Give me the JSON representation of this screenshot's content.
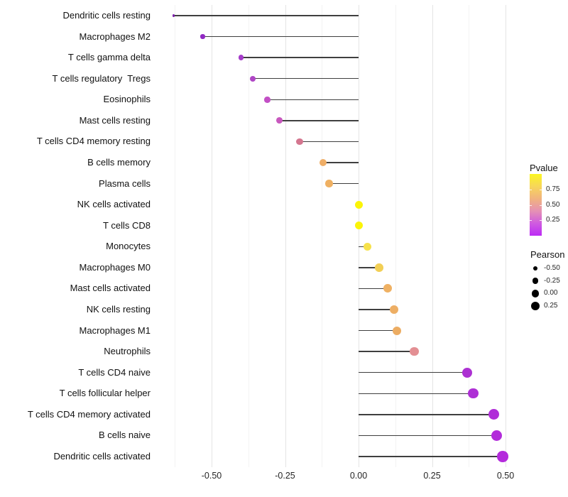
{
  "chart_data": {
    "type": "lollipop",
    "title": "",
    "xlabel": "",
    "ylabel": "",
    "x_ticks": [
      "-0.50",
      "-0.25",
      "0.00",
      "0.25",
      "0.50"
    ],
    "x_tick_values": [
      -0.5,
      -0.25,
      0.0,
      0.25,
      0.5
    ],
    "xlim": [
      -0.688,
      0.543
    ],
    "grid": "vertical-major-and-minor",
    "rows": [
      {
        "label": "Dendritic cells resting",
        "pearson": -0.63,
        "color": "#7e22ac",
        "diameter": 3.2
      },
      {
        "label": "Macrophages M2",
        "pearson": -0.53,
        "color": "#9129c3",
        "diameter": 6.2
      },
      {
        "label": "T cells gamma delta",
        "pearson": -0.4,
        "color": "#a53bc9",
        "diameter": 7.6
      },
      {
        "label": "T cells regulatory  Tregs",
        "pearson": -0.36,
        "color": "#af46c5",
        "diameter": 8.0
      },
      {
        "label": "Eosinophils",
        "pearson": -0.31,
        "color": "#c24fc5",
        "diameter": 8.5
      },
      {
        "label": "Mast cells resting",
        "pearson": -0.27,
        "color": "#c858be",
        "diameter": 8.9
      },
      {
        "label": "T cells CD4 memory resting",
        "pearson": -0.2,
        "color": "#d4768f",
        "diameter": 9.5
      },
      {
        "label": "B cells memory",
        "pearson": -0.12,
        "color": "#efae67",
        "diameter": 10.1
      },
      {
        "label": "Plasma cells",
        "pearson": -0.1,
        "color": "#efb062",
        "diameter": 10.3
      },
      {
        "label": "NK cells activated",
        "pearson": 0.0,
        "color": "#fbf408",
        "diameter": 11.0
      },
      {
        "label": "T cells CD8",
        "pearson": 0.0,
        "color": "#fbf408",
        "diameter": 11.0
      },
      {
        "label": "Monocytes",
        "pearson": 0.03,
        "color": "#f6e14b",
        "diameter": 11.3
      },
      {
        "label": "Macrophages M0",
        "pearson": 0.07,
        "color": "#f2cf55",
        "diameter": 11.6
      },
      {
        "label": "Mast cells activated",
        "pearson": 0.1,
        "color": "#efb163",
        "diameter": 11.9
      },
      {
        "label": "NK cells resting",
        "pearson": 0.12,
        "color": "#edae64",
        "diameter": 12.0
      },
      {
        "label": "Macrophages M1",
        "pearson": 0.13,
        "color": "#ecac62",
        "diameter": 12.1
      },
      {
        "label": "Neutrophils",
        "pearson": 0.19,
        "color": "#e38f93",
        "diameter": 12.6
      },
      {
        "label": "T cells CD4 naive",
        "pearson": 0.37,
        "color": "#ac31d2",
        "diameter": 14.0
      },
      {
        "label": "T cells follicular helper",
        "pearson": 0.39,
        "color": "#ae2fd5",
        "diameter": 14.2
      },
      {
        "label": "T cells CD4 memory activated",
        "pearson": 0.46,
        "color": "#b02dd8",
        "diameter": 15.0
      },
      {
        "label": "B cells naive",
        "pearson": 0.47,
        "color": "#b22cda",
        "diameter": 15.1
      },
      {
        "label": "Dendritic cells activated",
        "pearson": 0.49,
        "color": "#b42bdc",
        "diameter": 15.5
      }
    ],
    "legend": {
      "pvalue": {
        "title": "Pvalue",
        "tick_labels": [
          "0.75",
          "0.50",
          "0.25"
        ],
        "tick_values": [
          0.75,
          0.5,
          0.25
        ],
        "bar_range_top_to_bottom": [
          1.0,
          0.0
        ],
        "gradient_top_to_bottom": [
          "#fbf621",
          "#f7d65a",
          "#f1b37e",
          "#e591b4",
          "#cf5be0",
          "#bc2bf5"
        ]
      },
      "pearson": {
        "title": "Pearson",
        "items": [
          {
            "label": "-0.50",
            "diameter": 6.7
          },
          {
            "label": "-0.25",
            "diameter": 8.7
          },
          {
            "label": "0.00",
            "diameter": 10.7
          },
          {
            "label": "0.25",
            "diameter": 12.0
          }
        ]
      }
    }
  },
  "colors": {
    "background": "#ffffff",
    "stick": "#3f3f3f",
    "grid_major": "#e4e4e4",
    "grid_minor": "#f3f3f3",
    "axis_text": "#262626",
    "label_text": "#111111",
    "legend_dot": "#000000"
  }
}
